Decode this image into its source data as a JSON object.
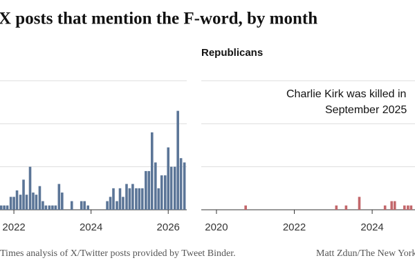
{
  "title": "X posts that mention the F-word, by month",
  "source": "Times analysis of X/Twitter posts provided by Tweet Binder.",
  "credit": "Matt Zdun/The New York Times",
  "chart_data": [
    {
      "type": "bar",
      "color": "#5b7597",
      "grid": true,
      "xlim": [
        2021.64,
        2026.48
      ],
      "xticks": [
        2022,
        2024,
        2026
      ],
      "ylim": [
        0,
        3
      ],
      "yticks": [
        0,
        1,
        2,
        3
      ],
      "x": [
        2021.67,
        2021.75,
        2021.83,
        2021.92,
        2022.0,
        2022.08,
        2022.17,
        2022.25,
        2022.33,
        2022.42,
        2022.5,
        2022.58,
        2022.67,
        2022.75,
        2022.83,
        2022.92,
        2023.0,
        2023.08,
        2023.17,
        2023.25,
        2023.33,
        2023.42,
        2023.5,
        2023.58,
        2023.67,
        2023.75,
        2023.83,
        2023.92,
        2024.0,
        2024.08,
        2024.17,
        2024.25,
        2024.33,
        2024.42,
        2024.5,
        2024.58,
        2024.67,
        2024.75,
        2024.83,
        2024.92,
        2025.0,
        2025.08,
        2025.17,
        2025.25,
        2025.33,
        2025.42,
        2025.5,
        2025.58,
        2025.67,
        2025.75,
        2025.83,
        2025.92,
        2026.0,
        2026.08,
        2026.17,
        2026.25,
        2026.33,
        2026.42
      ],
      "values": [
        0.1,
        0.1,
        0.1,
        0.3,
        0.3,
        0.45,
        0.35,
        0.7,
        0.35,
        1.0,
        0.4,
        0.35,
        0.55,
        0.2,
        0.1,
        0.1,
        0.1,
        0.1,
        0.6,
        0.4,
        0,
        0,
        0.2,
        0,
        0,
        0.2,
        0.2,
        0.1,
        0,
        0,
        0,
        0,
        0,
        0.2,
        0.3,
        0.5,
        0.2,
        0.5,
        0.3,
        0.6,
        0.5,
        0.6,
        0.5,
        0.5,
        0.5,
        0.9,
        0.9,
        1.8,
        1.1,
        0.5,
        0.8,
        0.8,
        1.45,
        1.0,
        1.0,
        2.3,
        1.2,
        1.1
      ]
    },
    {
      "type": "bar",
      "subtitle": "Republicans",
      "color": "#c3676b",
      "grid": true,
      "annotation": [
        "Charlie Kirk was killed in",
        "September 2025"
      ],
      "xlim": [
        2019.61,
        2025.1
      ],
      "xticks": [
        2020,
        2022,
        2024
      ],
      "ylim": [
        0,
        3
      ],
      "yticks": [
        0,
        1,
        2,
        3
      ],
      "x": [
        2020.75,
        2023.08,
        2023.33,
        2023.67,
        2024.33,
        2024.5,
        2024.58,
        2024.83,
        2024.92,
        2025.0
      ],
      "values": [
        0.1,
        0.1,
        0.1,
        0.3,
        0.1,
        0.2,
        0.2,
        0.1,
        0.1,
        0.1
      ]
    }
  ]
}
